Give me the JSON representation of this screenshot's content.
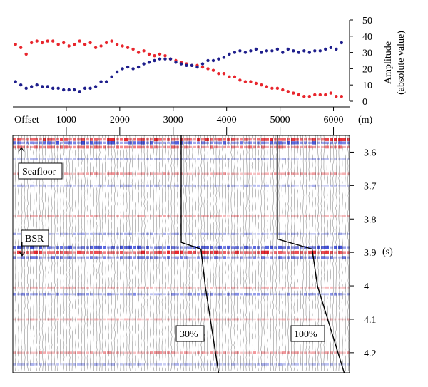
{
  "chart_data": [
    {
      "type": "scatter",
      "title": "",
      "xlabel": "Offset",
      "x_unit": "(m)",
      "ylabel_line1": "Amplitude",
      "ylabel_line2": "(absolute value)",
      "xlim": [
        0,
        6300
      ],
      "ylim": [
        0,
        50
      ],
      "x_ticks": [
        1000,
        2000,
        3000,
        4000,
        5000,
        6000
      ],
      "y_ticks": [
        0,
        10,
        20,
        30,
        40,
        50
      ],
      "colors": {
        "red": "#e8262d",
        "blue": "#1e1e8c"
      },
      "series": [
        {
          "name": "red",
          "x": [
            50,
            150,
            250,
            350,
            450,
            550,
            650,
            750,
            850,
            950,
            1050,
            1150,
            1250,
            1350,
            1450,
            1550,
            1650,
            1750,
            1850,
            1950,
            2050,
            2150,
            2250,
            2350,
            2450,
            2550,
            2650,
            2750,
            2850,
            2950,
            3050,
            3150,
            3250,
            3350,
            3450,
            3550,
            3650,
            3750,
            3850,
            3950,
            4050,
            4150,
            4250,
            4350,
            4450,
            4550,
            4650,
            4750,
            4850,
            4950,
            5050,
            5150,
            5250,
            5350,
            5450,
            5550,
            5650,
            5750,
            5850,
            5950,
            6050,
            6150
          ],
          "y": [
            35,
            33,
            29,
            36,
            37,
            36,
            37,
            37,
            35,
            36,
            34,
            35,
            37,
            35,
            36,
            33,
            34,
            36,
            37,
            35,
            34,
            33,
            32,
            30,
            31,
            29,
            28,
            29,
            28,
            26,
            25,
            24,
            23,
            22,
            22,
            21,
            20,
            19,
            17,
            17,
            15,
            15,
            13,
            12,
            12,
            11,
            10,
            9,
            8,
            8,
            7,
            6,
            5,
            4,
            3,
            3,
            4,
            4,
            4,
            5,
            3,
            3
          ]
        },
        {
          "name": "blue",
          "x": [
            50,
            150,
            250,
            350,
            450,
            550,
            650,
            750,
            850,
            950,
            1050,
            1150,
            1250,
            1350,
            1450,
            1550,
            1650,
            1750,
            1850,
            1950,
            2050,
            2150,
            2250,
            2350,
            2450,
            2550,
            2650,
            2750,
            2850,
            2950,
            3050,
            3150,
            3250,
            3350,
            3450,
            3550,
            3650,
            3750,
            3850,
            3950,
            4050,
            4150,
            4250,
            4350,
            4450,
            4550,
            4650,
            4750,
            4850,
            4950,
            5050,
            5150,
            5250,
            5350,
            5450,
            5550,
            5650,
            5750,
            5850,
            5950,
            6050,
            6150
          ],
          "y": [
            12,
            10,
            8,
            9,
            10,
            9,
            9,
            8,
            8,
            7,
            7,
            7,
            6,
            8,
            8,
            9,
            12,
            12,
            15,
            18,
            20,
            21,
            20,
            21,
            23,
            24,
            25,
            26,
            26,
            26,
            24,
            23,
            22,
            22,
            21,
            23,
            25,
            25,
            26,
            27,
            29,
            30,
            31,
            30,
            31,
            32,
            30,
            31,
            31,
            32,
            30,
            32,
            31,
            30,
            31,
            30,
            31,
            31,
            32,
            33,
            32,
            36
          ]
        }
      ]
    },
    {
      "type": "heatmap",
      "description_kind": "seismic-gather",
      "xlim": [
        0,
        6300
      ],
      "ylim_s": [
        3.55,
        4.26
      ],
      "y_ticks": [
        "3.6",
        "3.7",
        "3.8",
        "3.9",
        "4",
        "4.1",
        "4.2"
      ],
      "y_unit": "(s)",
      "reflectors": [
        {
          "t": 3.562,
          "color": "red",
          "strength": 1.0
        },
        {
          "t": 3.572,
          "color": "blue",
          "strength": 0.9
        },
        {
          "t": 3.585,
          "color": "red",
          "strength": 0.7
        },
        {
          "t": 3.62,
          "color": "blue",
          "strength": 0.4
        },
        {
          "t": 3.665,
          "color": "red",
          "strength": 0.5
        },
        {
          "t": 3.7,
          "color": "blue",
          "strength": 0.4
        },
        {
          "t": 3.79,
          "color": "red",
          "strength": 0.4
        },
        {
          "t": 3.845,
          "color": "blue",
          "strength": 0.45
        },
        {
          "t": 3.885,
          "color": "blue",
          "strength": 0.9
        },
        {
          "t": 3.9,
          "color": "red",
          "strength": 1.0
        },
        {
          "t": 3.915,
          "color": "blue",
          "strength": 0.7
        },
        {
          "t": 4.005,
          "color": "red",
          "strength": 0.35
        },
        {
          "t": 4.025,
          "color": "blue",
          "strength": 0.6
        },
        {
          "t": 4.1,
          "color": "red",
          "strength": 0.35
        },
        {
          "t": 4.2,
          "color": "red",
          "strength": 0.5
        },
        {
          "t": 4.235,
          "color": "blue",
          "strength": 0.4
        }
      ],
      "annotations": {
        "seafloor": "Seafloor",
        "bsr": "BSR",
        "mute30": "30%",
        "mute100": "100%"
      },
      "mute_curves": [
        {
          "name": "30%",
          "points": [
            [
              3150,
              3.55
            ],
            [
              3150,
              3.87
            ],
            [
              3520,
              3.89
            ],
            [
              3600,
              4.0
            ],
            [
              3850,
              4.26
            ]
          ]
        },
        {
          "name": "100%",
          "points": [
            [
              4950,
              3.55
            ],
            [
              4950,
              3.86
            ],
            [
              5600,
              3.89
            ],
            [
              5700,
              4.0
            ],
            [
              6200,
              4.26
            ]
          ]
        }
      ]
    }
  ]
}
